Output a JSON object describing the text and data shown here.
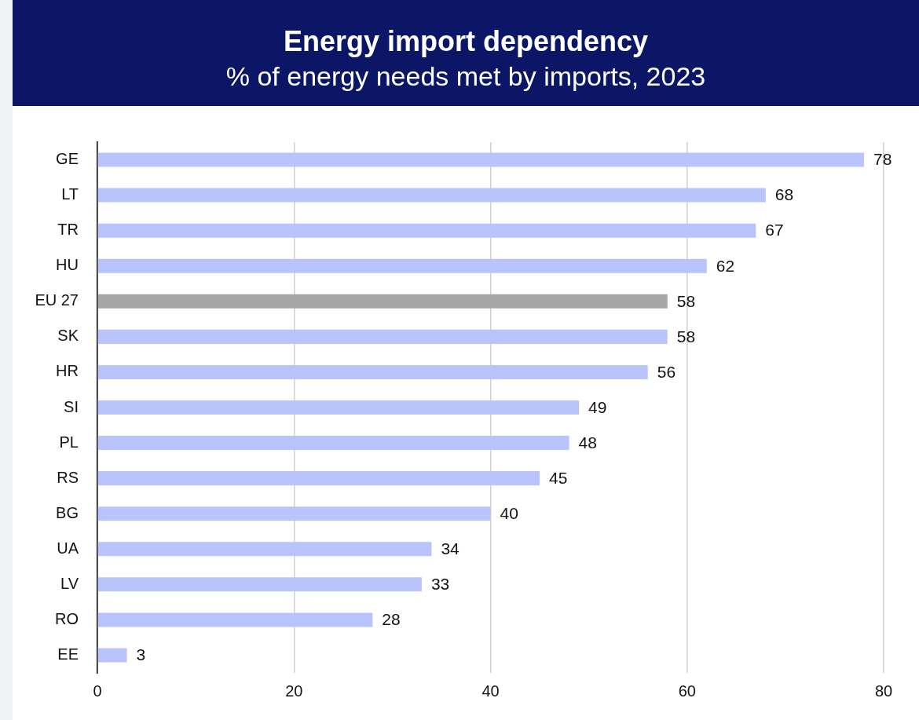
{
  "chart_data": {
    "type": "bar",
    "orientation": "horizontal",
    "title": "Energy import dependency",
    "subtitle": "% of energy needs met by imports, 2023",
    "categories": [
      "GE",
      "LT",
      "TR",
      "HU",
      "EU 27",
      "SK",
      "HR",
      "SI",
      "PL",
      "RS",
      "BG",
      "UA",
      "LV",
      "RO",
      "EE"
    ],
    "values": [
      78,
      68,
      67,
      62,
      58,
      58,
      56,
      49,
      48,
      45,
      40,
      34,
      33,
      28,
      3
    ],
    "colors": [
      "#b8c4fb",
      "#b8c4fb",
      "#b8c4fb",
      "#b8c4fb",
      "#a6a6a6",
      "#b8c4fb",
      "#b8c4fb",
      "#b8c4fb",
      "#b8c4fb",
      "#b8c4fb",
      "#b8c4fb",
      "#b8c4fb",
      "#b8c4fb",
      "#b8c4fb",
      "#b8c4fb"
    ],
    "xlim": [
      0,
      80
    ],
    "xticks": [
      0,
      20,
      40,
      60,
      80
    ],
    "grid": "x",
    "data_labels": true
  }
}
